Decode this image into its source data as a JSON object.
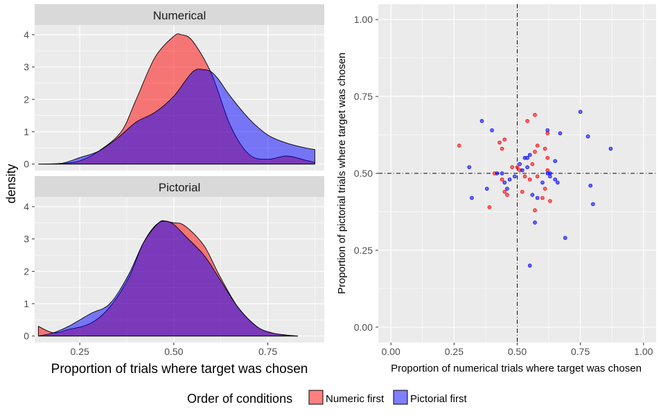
{
  "colors": {
    "numeric_first": "#ff0000",
    "pictorial_first": "#0000ff",
    "panel_bg": "#ebebeb",
    "strip_bg": "#d9d9d9",
    "grid": "#ffffff",
    "text": "#000000",
    "axis_text": "#4d4d4d"
  },
  "legend": {
    "title": "Order of conditions",
    "items": [
      {
        "label": "Numeric first",
        "color": "#ff0000"
      },
      {
        "label": "Pictorial first",
        "color": "#0000ff"
      }
    ],
    "placement": "bottom"
  },
  "chart_data": [
    {
      "type": "area",
      "facet": "Numerical",
      "xlabel": "Proportion of trials where target was chosen",
      "ylabel": "density",
      "xlim": [
        0.13,
        0.9
      ],
      "ylim": [
        -0.2,
        4.3
      ],
      "xticks": [
        0.25,
        0.5,
        0.75
      ],
      "xtick_labels": [
        "0.25",
        "0.50",
        "0.75"
      ],
      "yticks": [
        0,
        1,
        2,
        3,
        4
      ],
      "ytick_labels": [
        "0",
        "1",
        "2",
        "3",
        "4"
      ],
      "series": [
        {
          "name": "Numeric first",
          "x": [
            0.14,
            0.2,
            0.25,
            0.3,
            0.36,
            0.4,
            0.45,
            0.5,
            0.52,
            0.55,
            0.6,
            0.65,
            0.7,
            0.75,
            0.8,
            0.85,
            0.875
          ],
          "y": [
            0,
            0.02,
            0.1,
            0.4,
            1.0,
            2.0,
            3.3,
            3.95,
            4.0,
            3.8,
            2.8,
            1.2,
            0.3,
            0.15,
            0.25,
            0.12,
            0.05
          ]
        },
        {
          "name": "Pictorial first",
          "x": [
            0.14,
            0.2,
            0.25,
            0.3,
            0.35,
            0.4,
            0.45,
            0.5,
            0.55,
            0.58,
            0.6,
            0.62,
            0.65,
            0.7,
            0.75,
            0.8,
            0.85,
            0.875
          ],
          "y": [
            0,
            0.02,
            0.2,
            0.4,
            0.8,
            1.3,
            1.6,
            2.1,
            2.85,
            2.92,
            2.85,
            2.6,
            2.1,
            1.4,
            0.9,
            0.65,
            0.5,
            0.45
          ]
        }
      ]
    },
    {
      "type": "area",
      "facet": "Pictorial",
      "xlabel": "Proportion of trials where target was chosen",
      "ylabel": "density",
      "xlim": [
        0.13,
        0.9
      ],
      "ylim": [
        -0.2,
        4.3
      ],
      "xticks": [
        0.25,
        0.5,
        0.75
      ],
      "xtick_labels": [
        "0.25",
        "0.50",
        "0.75"
      ],
      "yticks": [
        0,
        1,
        2,
        3,
        4
      ],
      "ytick_labels": [
        "0",
        "1",
        "2",
        "3",
        "4"
      ],
      "series": [
        {
          "name": "Numeric first",
          "x": [
            0.14,
            0.18,
            0.22,
            0.28,
            0.33,
            0.38,
            0.42,
            0.46,
            0.5,
            0.53,
            0.58,
            0.62,
            0.67,
            0.72,
            0.76,
            0.8,
            0.83
          ],
          "y": [
            0.3,
            0.1,
            0.2,
            0.4,
            0.9,
            1.8,
            2.9,
            3.5,
            3.5,
            3.4,
            2.8,
            1.9,
            0.9,
            0.3,
            0.1,
            0.03,
            0
          ]
        },
        {
          "name": "Pictorial first",
          "x": [
            0.14,
            0.18,
            0.22,
            0.28,
            0.33,
            0.38,
            0.42,
            0.46,
            0.48,
            0.5,
            0.53,
            0.58,
            0.62,
            0.67,
            0.72,
            0.76,
            0.8,
            0.83
          ],
          "y": [
            0,
            0.1,
            0.3,
            0.7,
            1.0,
            1.9,
            2.9,
            3.5,
            3.55,
            3.45,
            3.1,
            2.5,
            1.8,
            0.9,
            0.3,
            0.1,
            0.03,
            0
          ]
        }
      ]
    },
    {
      "type": "scatter",
      "xlabel": "Proportion of numerical trials where target was chosen",
      "ylabel": "Proportion of pictorial trials where target was chosen",
      "xlim": [
        -0.05,
        1.05
      ],
      "ylim": [
        -0.05,
        1.05
      ],
      "xticks": [
        0,
        0.25,
        0.5,
        0.75,
        1
      ],
      "xtick_labels": [
        "0.00",
        "0.25",
        "0.50",
        "0.75",
        "1.00"
      ],
      "yticks": [
        0,
        0.25,
        0.5,
        0.75,
        1
      ],
      "ytick_labels": [
        "0.00",
        "0.25",
        "0.50",
        "0.75",
        "1.00"
      ],
      "reference_lines": {
        "x": 0.5,
        "y": 0.5
      },
      "series": [
        {
          "name": "Numeric first",
          "points": [
            [
              0.27,
              0.59
            ],
            [
              0.39,
              0.39
            ],
            [
              0.41,
              0.5
            ],
            [
              0.43,
              0.6
            ],
            [
              0.44,
              0.58
            ],
            [
              0.45,
              0.61
            ],
            [
              0.44,
              0.48
            ],
            [
              0.45,
              0.44
            ],
            [
              0.46,
              0.43
            ],
            [
              0.48,
              0.52
            ],
            [
              0.5,
              0.52
            ],
            [
              0.51,
              0.51
            ],
            [
              0.52,
              0.44
            ],
            [
              0.53,
              0.49
            ],
            [
              0.54,
              0.67
            ],
            [
              0.55,
              0.48
            ],
            [
              0.56,
              0.53
            ],
            [
              0.57,
              0.69
            ],
            [
              0.57,
              0.38
            ],
            [
              0.58,
              0.59
            ],
            [
              0.58,
              0.49
            ],
            [
              0.6,
              0.42
            ],
            [
              0.61,
              0.58
            ],
            [
              0.61,
              0.45
            ],
            [
              0.62,
              0.55
            ],
            [
              0.62,
              0.51
            ],
            [
              0.62,
              0.63
            ],
            [
              0.63,
              0.41
            ],
            [
              0.57,
              0.57
            ]
          ]
        },
        {
          "name": "Pictorial first",
          "points": [
            [
              0.31,
              0.52
            ],
            [
              0.32,
              0.42
            ],
            [
              0.36,
              0.67
            ],
            [
              0.38,
              0.45
            ],
            [
              0.4,
              0.64
            ],
            [
              0.42,
              0.5
            ],
            [
              0.44,
              0.5
            ],
            [
              0.45,
              0.47
            ],
            [
              0.46,
              0.45
            ],
            [
              0.49,
              0.49
            ],
            [
              0.51,
              0.53
            ],
            [
              0.52,
              0.51
            ],
            [
              0.53,
              0.55
            ],
            [
              0.54,
              0.55
            ],
            [
              0.54,
              0.52
            ],
            [
              0.55,
              0.56
            ],
            [
              0.55,
              0.2
            ],
            [
              0.56,
              0.43
            ],
            [
              0.57,
              0.34
            ],
            [
              0.58,
              0.42
            ],
            [
              0.62,
              0.64
            ],
            [
              0.62,
              0.5
            ],
            [
              0.63,
              0.5
            ],
            [
              0.63,
              0.49
            ],
            [
              0.65,
              0.54
            ],
            [
              0.65,
              0.48
            ],
            [
              0.66,
              0.47
            ],
            [
              0.67,
              0.63
            ],
            [
              0.69,
              0.29
            ],
            [
              0.75,
              0.7
            ],
            [
              0.78,
              0.62
            ],
            [
              0.79,
              0.46
            ],
            [
              0.8,
              0.4
            ],
            [
              0.87,
              0.58
            ],
            [
              0.6,
              0.47
            ],
            [
              0.47,
              0.48
            ]
          ]
        }
      ]
    }
  ]
}
